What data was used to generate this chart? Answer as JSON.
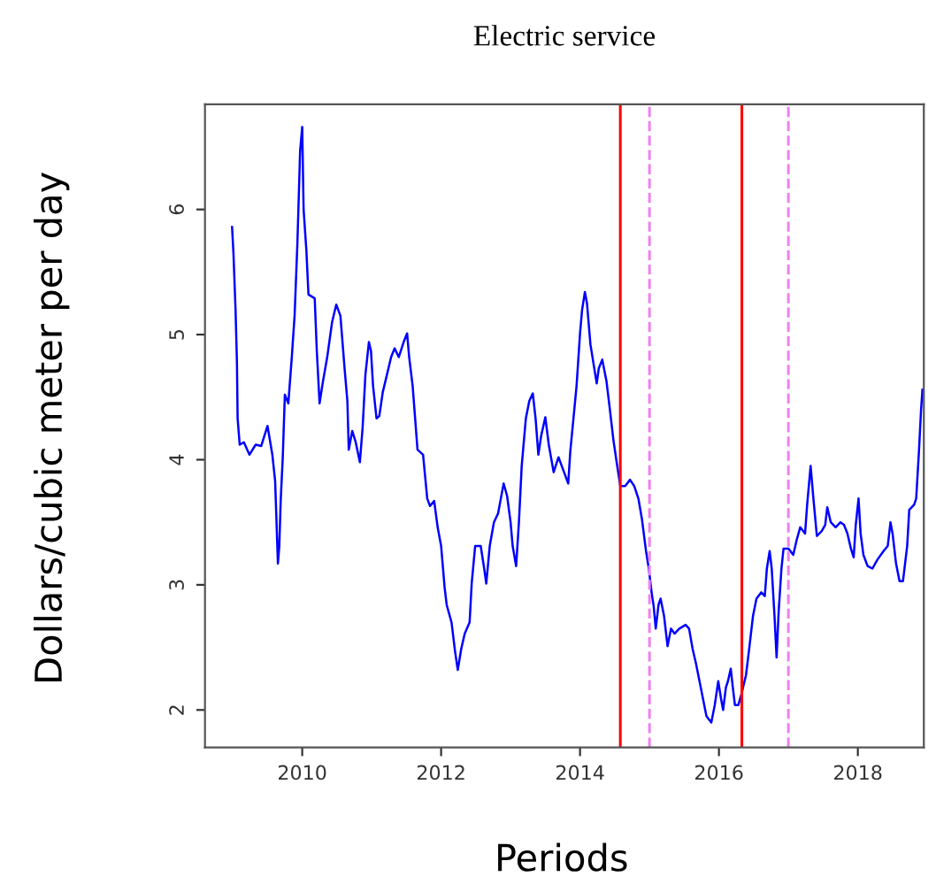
{
  "chart_data": {
    "type": "line",
    "title": "Electric service",
    "xlabel": "Periods",
    "ylabel": "Dollars/cubic meter per day",
    "xlim": [
      2008.6,
      2018.95
    ],
    "ylim": [
      1.7,
      6.84
    ],
    "xticks": [
      2010,
      2012,
      2014,
      2016,
      2018
    ],
    "yticks": [
      2,
      3,
      4,
      5,
      6
    ],
    "grid": false,
    "marker": "none",
    "line_style": "solid",
    "series": [
      {
        "color": "#0000ff",
        "x": [
          2008.99,
          2009.01,
          2009.04,
          2009.06,
          2009.07,
          2009.1,
          2009.16,
          2009.24,
          2009.33,
          2009.41,
          2009.5,
          2009.57,
          2009.61,
          2009.65,
          2009.67,
          2009.69,
          2009.72,
          2009.75,
          2009.8,
          2009.85,
          2009.89,
          2009.93,
          2009.97,
          2010.0,
          2010.02,
          2010.06,
          2010.09,
          2010.18,
          2010.21,
          2010.25,
          2010.3,
          2010.36,
          2010.43,
          2010.49,
          2010.55,
          2010.61,
          2010.65,
          2010.67,
          2010.72,
          2010.77,
          2010.83,
          2010.87,
          2010.91,
          2010.96,
          2010.99,
          2011.02,
          2011.07,
          2011.11,
          2011.16,
          2011.22,
          2011.28,
          2011.33,
          2011.39,
          2011.46,
          2011.51,
          2011.54,
          2011.59,
          2011.66,
          2011.74,
          2011.8,
          2011.84,
          2011.9,
          2011.95,
          2012.0,
          2012.05,
          2012.08,
          2012.15,
          2012.2,
          2012.24,
          2012.29,
          2012.34,
          2012.41,
          2012.44,
          2012.49,
          2012.57,
          2012.62,
          2012.65,
          2012.7,
          2012.76,
          2012.82,
          2012.9,
          2012.95,
          2013.0,
          2013.03,
          2013.08,
          2013.12,
          2013.16,
          2013.22,
          2013.27,
          2013.32,
          2013.36,
          2013.4,
          2013.44,
          2013.5,
          2013.55,
          2013.62,
          2013.69,
          2013.83,
          2013.86,
          2013.9,
          2013.95,
          2014.0,
          2014.03,
          2014.07,
          2014.1,
          2014.15,
          2014.24,
          2014.27,
          2014.32,
          2014.38,
          2014.43,
          2014.48,
          2014.53,
          2014.58,
          2014.65,
          2014.72,
          2014.78,
          2014.84,
          2014.89,
          2014.95,
          2014.99,
          2015.03,
          2015.06,
          2015.09,
          2015.13,
          2015.16,
          2015.21,
          2015.26,
          2015.31,
          2015.36,
          2015.43,
          2015.52,
          2015.57,
          2015.62,
          2015.67,
          2015.72,
          2015.77,
          2015.82,
          2015.89,
          2015.94,
          2015.99,
          2016.03,
          2016.06,
          2016.1,
          2016.13,
          2016.17,
          2016.2,
          2016.23,
          2016.28,
          2016.33,
          2016.39,
          2016.44,
          2016.49,
          2016.54,
          2016.61,
          2016.66,
          2016.69,
          2016.73,
          2016.76,
          2016.8,
          2016.83,
          2016.86,
          2016.9,
          2016.93,
          2017.0,
          2017.07,
          2017.12,
          2017.17,
          2017.24,
          2017.27,
          2017.32,
          2017.36,
          2017.41,
          2017.48,
          2017.53,
          2017.56,
          2017.61,
          2017.68,
          2017.75,
          2017.8,
          2017.85,
          2017.9,
          2017.94,
          2017.97,
          2018.01,
          2018.04,
          2018.08,
          2018.14,
          2018.21,
          2018.28,
          2018.37,
          2018.43,
          2018.47,
          2018.5,
          2018.55,
          2018.6,
          2018.65,
          2018.71,
          2018.74,
          2018.81,
          2018.84,
          2018.88,
          2018.91,
          2018.93
        ],
        "values": [
          5.86,
          5.65,
          5.2,
          4.78,
          4.33,
          4.12,
          4.14,
          4.04,
          4.12,
          4.11,
          4.27,
          4.04,
          3.83,
          3.17,
          3.31,
          3.67,
          4.02,
          4.52,
          4.45,
          4.82,
          5.15,
          5.72,
          6.47,
          6.66,
          6.0,
          5.67,
          5.32,
          5.29,
          4.87,
          4.45,
          4.63,
          4.82,
          5.1,
          5.24,
          5.15,
          4.73,
          4.47,
          4.08,
          4.23,
          4.14,
          3.98,
          4.26,
          4.68,
          4.94,
          4.87,
          4.59,
          4.33,
          4.35,
          4.54,
          4.68,
          4.82,
          4.89,
          4.82,
          4.94,
          5.01,
          4.82,
          4.59,
          4.08,
          4.04,
          3.69,
          3.63,
          3.67,
          3.46,
          3.31,
          2.98,
          2.84,
          2.7,
          2.47,
          2.32,
          2.49,
          2.61,
          2.7,
          3.01,
          3.31,
          3.31,
          3.13,
          3.01,
          3.31,
          3.5,
          3.57,
          3.81,
          3.71,
          3.5,
          3.31,
          3.15,
          3.5,
          3.95,
          4.33,
          4.47,
          4.53,
          4.33,
          4.04,
          4.19,
          4.34,
          4.12,
          3.9,
          4.02,
          3.81,
          4.07,
          4.3,
          4.59,
          5.01,
          5.2,
          5.34,
          5.25,
          4.92,
          4.61,
          4.73,
          4.8,
          4.63,
          4.4,
          4.16,
          3.97,
          3.79,
          3.79,
          3.84,
          3.79,
          3.69,
          3.53,
          3.27,
          3.13,
          2.94,
          2.83,
          2.65,
          2.84,
          2.89,
          2.75,
          2.51,
          2.65,
          2.61,
          2.65,
          2.68,
          2.65,
          2.49,
          2.37,
          2.23,
          2.09,
          1.95,
          1.9,
          2.04,
          2.23,
          2.09,
          2.0,
          2.18,
          2.23,
          2.33,
          2.18,
          2.04,
          2.04,
          2.14,
          2.28,
          2.51,
          2.75,
          2.89,
          2.94,
          2.91,
          3.13,
          3.27,
          3.13,
          2.75,
          2.42,
          2.79,
          3.13,
          3.29,
          3.29,
          3.24,
          3.36,
          3.46,
          3.41,
          3.64,
          3.95,
          3.69,
          3.39,
          3.43,
          3.48,
          3.62,
          3.5,
          3.46,
          3.5,
          3.48,
          3.41,
          3.29,
          3.22,
          3.48,
          3.69,
          3.41,
          3.24,
          3.15,
          3.13,
          3.2,
          3.27,
          3.31,
          3.5,
          3.41,
          3.17,
          3.03,
          3.03,
          3.31,
          3.6,
          3.64,
          3.69,
          4.07,
          4.4,
          4.56
        ]
      }
    ],
    "ref_lines": [
      {
        "axis": "x",
        "value": 2014.58,
        "color": "#ff0000",
        "line_style": "solid"
      },
      {
        "axis": "x",
        "value": 2015.0,
        "color": "#ee82ee",
        "line_style": "dashed"
      },
      {
        "axis": "x",
        "value": 2016.33,
        "color": "#ff0000",
        "line_style": "solid"
      },
      {
        "axis": "x",
        "value": 2017.0,
        "color": "#ee82ee",
        "line_style": "dashed"
      }
    ]
  }
}
